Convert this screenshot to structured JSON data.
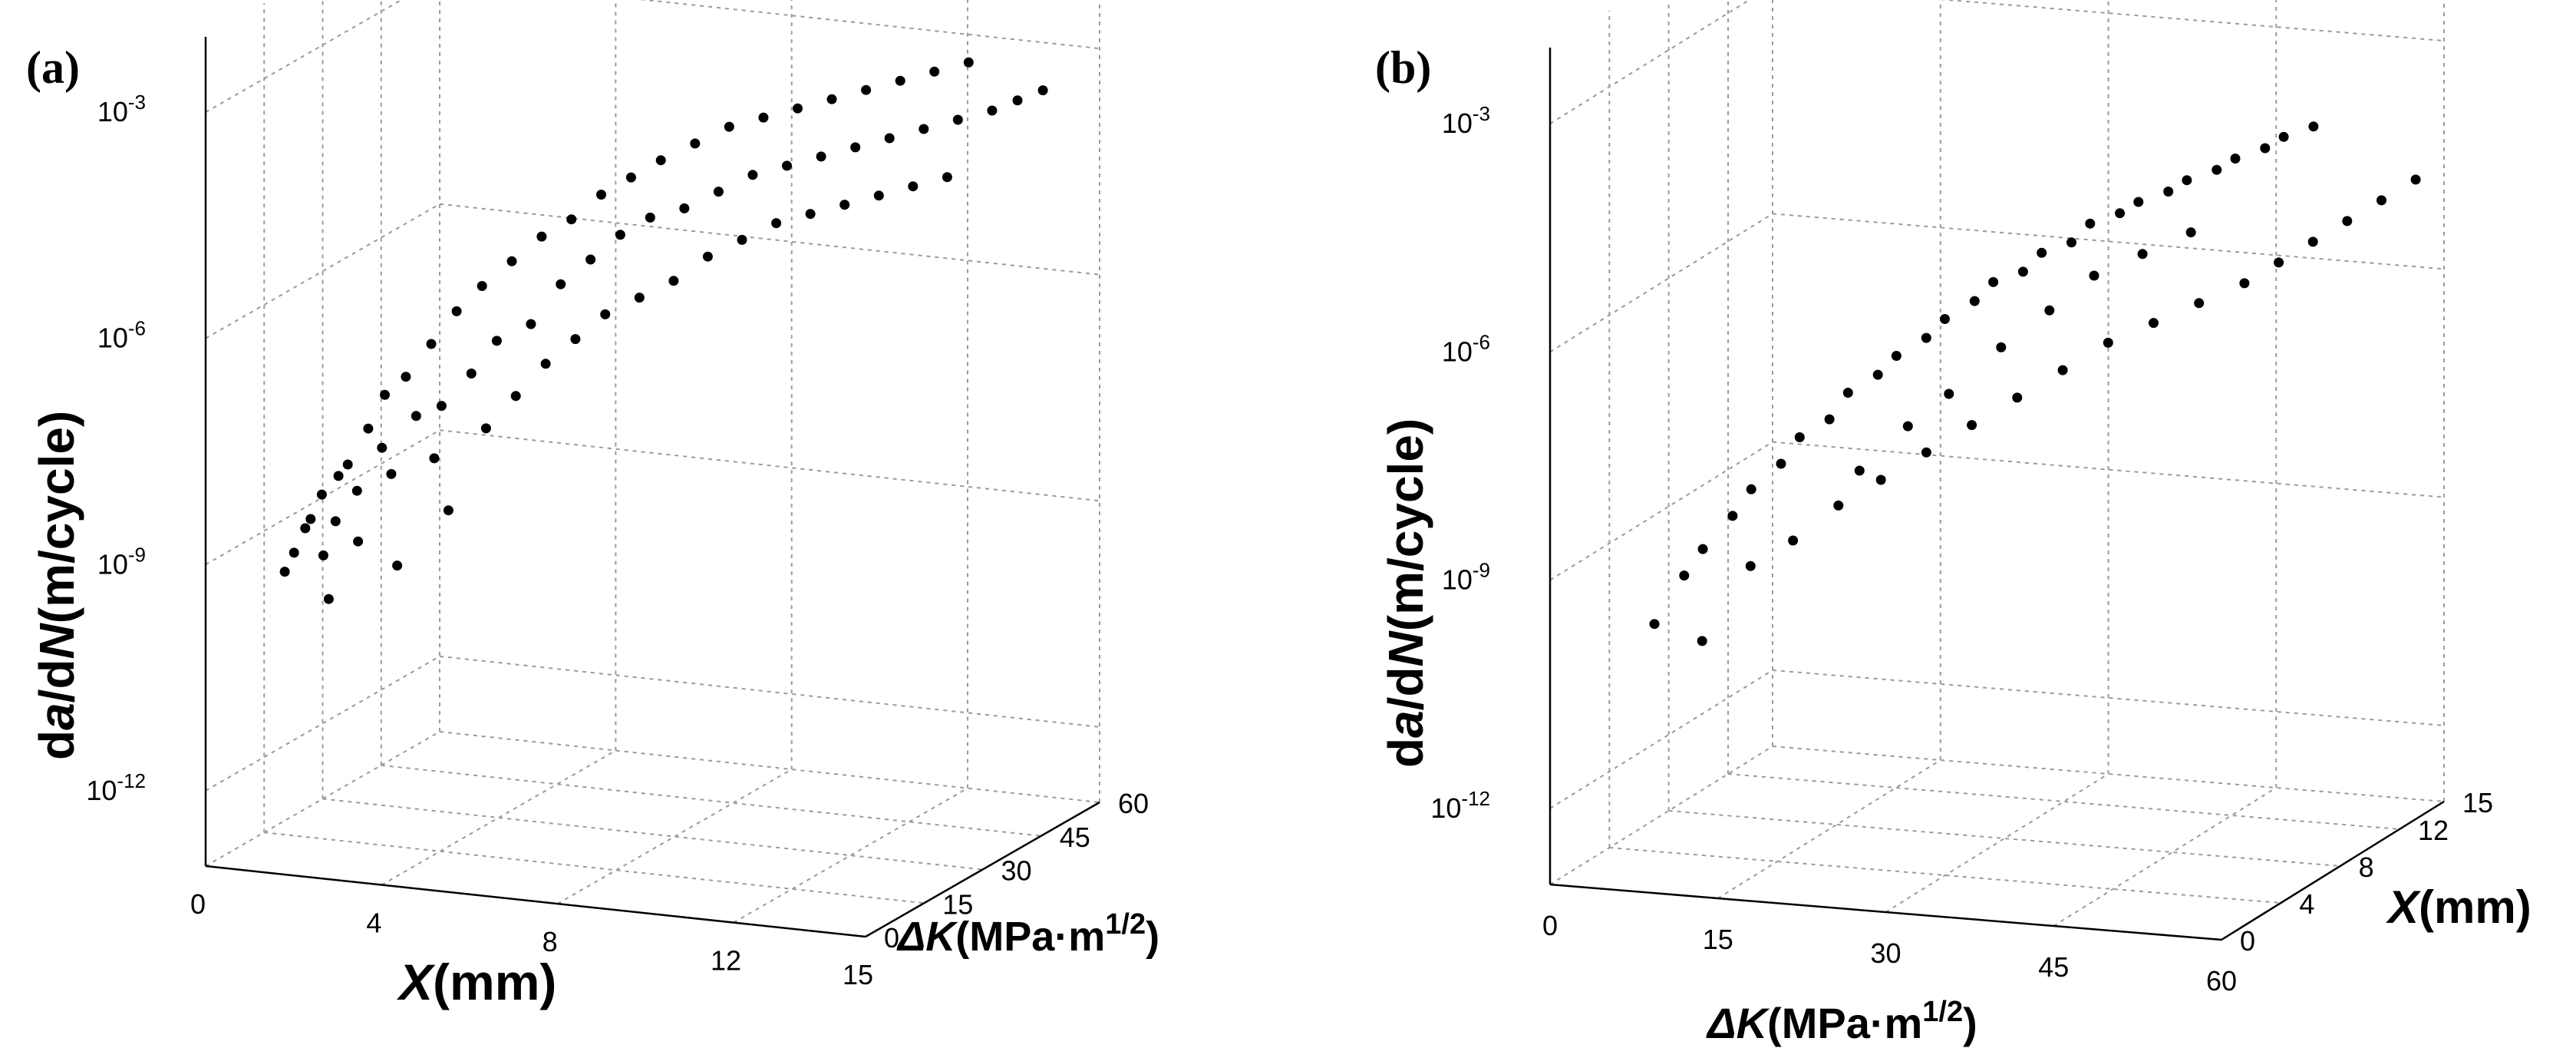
{
  "chart_data": [
    {
      "panel": "(a)",
      "type": "scatter",
      "view": "X-left",
      "xlabel": {
        "italic": "X",
        "rest": "(mm)"
      },
      "ylabel": {
        "italic": "ΔK",
        "rest": "(MPa·m",
        "sup": "1/2",
        "close": ")"
      },
      "zlabel": {
        "pre": "d",
        "italic1": "a",
        "mid": "/d",
        "italic2": "N",
        "rest": "(m/cycle)"
      },
      "x_ticks": [
        "0",
        "4",
        "8",
        "12",
        "15"
      ],
      "x_tick_values": [
        0,
        4,
        8,
        12,
        15
      ],
      "y_ticks": [
        "0",
        "15",
        "30",
        "45",
        "60"
      ],
      "y_tick_values": [
        0,
        15,
        30,
        45,
        60
      ],
      "z_ticks": [
        {
          "base": "10",
          "exp": "-12"
        },
        {
          "base": "10",
          "exp": "-9"
        },
        {
          "base": "10",
          "exp": "-6"
        },
        {
          "base": "10",
          "exp": "-3"
        }
      ],
      "z_tick_values": [
        -12,
        -9,
        -6,
        -3
      ],
      "xlim": [
        0,
        15
      ],
      "ylim": [
        0,
        60
      ],
      "zlim_log10": [
        -13,
        -2
      ],
      "grid": true,
      "points": [
        [
          1.0,
          9,
          -9.3
        ],
        [
          1.2,
          12,
          -8.8
        ],
        [
          1.3,
          8,
          -9.0
        ],
        [
          1.4,
          14,
          -8.4
        ],
        [
          1.5,
          10,
          -8.6
        ],
        [
          1.6,
          16,
          -8.2
        ],
        [
          1.7,
          11,
          -9.1
        ],
        [
          1.8,
          13,
          -8.7
        ],
        [
          1.9,
          15,
          -8.0
        ],
        [
          2.0,
          9,
          -9.6
        ],
        [
          2.1,
          18,
          -7.6
        ],
        [
          2.2,
          14,
          -8.3
        ],
        [
          2.3,
          20,
          -7.2
        ],
        [
          2.4,
          12,
          -8.9
        ],
        [
          2.5,
          17,
          -7.8
        ],
        [
          2.6,
          22,
          -7.0
        ],
        [
          2.8,
          16,
          -8.1
        ],
        [
          3.0,
          24,
          -6.6
        ],
        [
          3.1,
          19,
          -7.4
        ],
        [
          3.2,
          13,
          -9.2
        ],
        [
          3.4,
          26,
          -6.2
        ],
        [
          3.5,
          21,
          -7.3
        ],
        [
          3.6,
          18,
          -7.9
        ],
        [
          3.8,
          28,
          -5.9
        ],
        [
          4.0,
          23,
          -6.9
        ],
        [
          4.1,
          16,
          -8.5
        ],
        [
          4.3,
          30,
          -5.6
        ],
        [
          4.4,
          25,
          -6.5
        ],
        [
          4.6,
          20,
          -7.5
        ],
        [
          4.8,
          32,
          -5.3
        ],
        [
          5.0,
          27,
          -6.3
        ],
        [
          5.1,
          22,
          -7.1
        ],
        [
          5.3,
          34,
          -5.1
        ],
        [
          5.5,
          29,
          -5.8
        ],
        [
          5.6,
          24,
          -6.7
        ],
        [
          5.8,
          36,
          -4.8
        ],
        [
          6.0,
          31,
          -5.5
        ],
        [
          6.1,
          26,
          -6.4
        ],
        [
          6.3,
          38,
          -4.6
        ],
        [
          6.5,
          33,
          -5.2
        ],
        [
          6.6,
          28,
          -6.1
        ],
        [
          6.8,
          40,
          -4.4
        ],
        [
          7.0,
          35,
          -5.0
        ],
        [
          7.2,
          30,
          -5.9
        ],
        [
          7.4,
          42,
          -4.2
        ],
        [
          7.6,
          37,
          -4.9
        ],
        [
          7.8,
          32,
          -5.7
        ],
        [
          8.0,
          44,
          -4.0
        ],
        [
          8.2,
          39,
          -4.7
        ],
        [
          8.4,
          34,
          -5.4
        ],
        [
          8.6,
          46,
          -3.9
        ],
        [
          8.8,
          41,
          -4.5
        ],
        [
          9.0,
          36,
          -5.2
        ],
        [
          9.2,
          48,
          -3.8
        ],
        [
          9.4,
          43,
          -4.4
        ],
        [
          9.6,
          38,
          -5.0
        ],
        [
          9.8,
          50,
          -3.7
        ],
        [
          10.0,
          45,
          -4.3
        ],
        [
          10.2,
          40,
          -4.9
        ],
        [
          10.4,
          52,
          -3.6
        ],
        [
          10.6,
          47,
          -4.2
        ],
        [
          10.8,
          42,
          -4.8
        ],
        [
          11.0,
          54,
          -3.5
        ],
        [
          11.2,
          49,
          -4.1
        ],
        [
          11.4,
          44,
          -4.7
        ],
        [
          11.6,
          56,
          -3.4
        ],
        [
          11.8,
          51,
          -4.0
        ],
        [
          12.0,
          46,
          -4.6
        ],
        [
          12.2,
          58,
          -3.3
        ],
        [
          12.4,
          53,
          -3.9
        ],
        [
          12.6,
          48,
          -4.5
        ],
        [
          13.0,
          55,
          -3.8
        ],
        [
          13.4,
          57,
          -3.7
        ],
        [
          13.8,
          59,
          -3.6
        ]
      ]
    },
    {
      "panel": "(b)",
      "type": "scatter",
      "view": "ΔK-left",
      "xlabel": {
        "italic": "ΔK",
        "rest": "(MPa·m",
        "sup": "1/2",
        "close": ")"
      },
      "ylabel": {
        "italic": "X",
        "rest": "(mm)"
      },
      "zlabel": {
        "pre": "d",
        "italic1": "a",
        "mid": "/d",
        "italic2": "N",
        "rest": "(m/cycle)"
      },
      "x_ticks": [
        "0",
        "15",
        "30",
        "45",
        "60"
      ],
      "x_tick_values": [
        0,
        15,
        30,
        45,
        60
      ],
      "y_ticks": [
        "0",
        "4",
        "8",
        "12",
        "15"
      ],
      "y_tick_values": [
        0,
        4,
        8,
        12,
        15
      ],
      "z_ticks": [
        {
          "base": "10",
          "exp": "-12"
        },
        {
          "base": "10",
          "exp": "-9"
        },
        {
          "base": "10",
          "exp": "-6"
        },
        {
          "base": "10",
          "exp": "-3"
        }
      ],
      "z_tick_values": [
        -12,
        -9,
        -6,
        -3
      ],
      "xlim": [
        0,
        60
      ],
      "ylim": [
        0,
        15
      ],
      "zlim_log10": [
        -13,
        -2
      ],
      "grid": true,
      "points": [
        [
          8,
          1.0,
          -9.6
        ],
        [
          10,
          1.5,
          -9.0
        ],
        [
          11,
          2.0,
          -8.7
        ],
        [
          12,
          1.2,
          -9.8
        ],
        [
          13,
          2.5,
          -8.3
        ],
        [
          14,
          3.0,
          -8.0
        ],
        [
          15,
          2.2,
          -8.9
        ],
        [
          16,
          3.5,
          -7.7
        ],
        [
          17,
          4.0,
          -7.4
        ],
        [
          18,
          2.8,
          -8.6
        ],
        [
          19,
          4.5,
          -7.2
        ],
        [
          20,
          5.0,
          -6.9
        ],
        [
          21,
          3.6,
          -8.2
        ],
        [
          22,
          5.5,
          -6.7
        ],
        [
          23,
          6.0,
          -6.5
        ],
        [
          24,
          4.2,
          -7.9
        ],
        [
          25,
          6.5,
          -6.3
        ],
        [
          26,
          7.0,
          -6.1
        ],
        [
          27,
          5.0,
          -7.6
        ],
        [
          28,
          7.5,
          -5.9
        ],
        [
          29,
          8.0,
          -5.7
        ],
        [
          30,
          5.8,
          -7.3
        ],
        [
          31,
          8.5,
          -5.6
        ],
        [
          32,
          9.0,
          -5.4
        ],
        [
          33,
          6.6,
          -7.0
        ],
        [
          34,
          9.5,
          -5.3
        ],
        [
          35,
          10.0,
          -5.1
        ],
        [
          36,
          7.4,
          -6.7
        ],
        [
          37,
          10.5,
          -5.0
        ],
        [
          38,
          11.0,
          -4.9
        ],
        [
          39,
          8.2,
          -6.4
        ],
        [
          40,
          11.5,
          -4.8
        ],
        [
          41,
          12.0,
          -4.7
        ],
        [
          42,
          9.0,
          -6.2
        ],
        [
          43,
          12.5,
          -4.6
        ],
        [
          44,
          13.0,
          -4.5
        ],
        [
          45,
          9.8,
          -6.0
        ],
        [
          46,
          13.5,
          -4.4
        ],
        [
          47,
          14.0,
          -4.3
        ],
        [
          48,
          10.6,
          -5.8
        ],
        [
          49,
          14.5,
          -4.2
        ],
        [
          50,
          11.4,
          -5.6
        ],
        [
          52,
          12.2,
          -5.4
        ],
        [
          54,
          13.0,
          -5.2
        ],
        [
          56,
          13.8,
          -5.0
        ],
        [
          58,
          14.6,
          -4.8
        ],
        [
          35,
          4.0,
          -6.0
        ],
        [
          38,
          5.0,
          -5.6
        ],
        [
          40,
          6.5,
          -5.3
        ],
        [
          43,
          7.5,
          -5.1
        ],
        [
          46,
          8.5,
          -4.9
        ],
        [
          25,
          2.0,
          -7.5
        ],
        [
          28,
          3.0,
          -7.0
        ],
        [
          31,
          3.5,
          -6.6
        ]
      ]
    }
  ]
}
